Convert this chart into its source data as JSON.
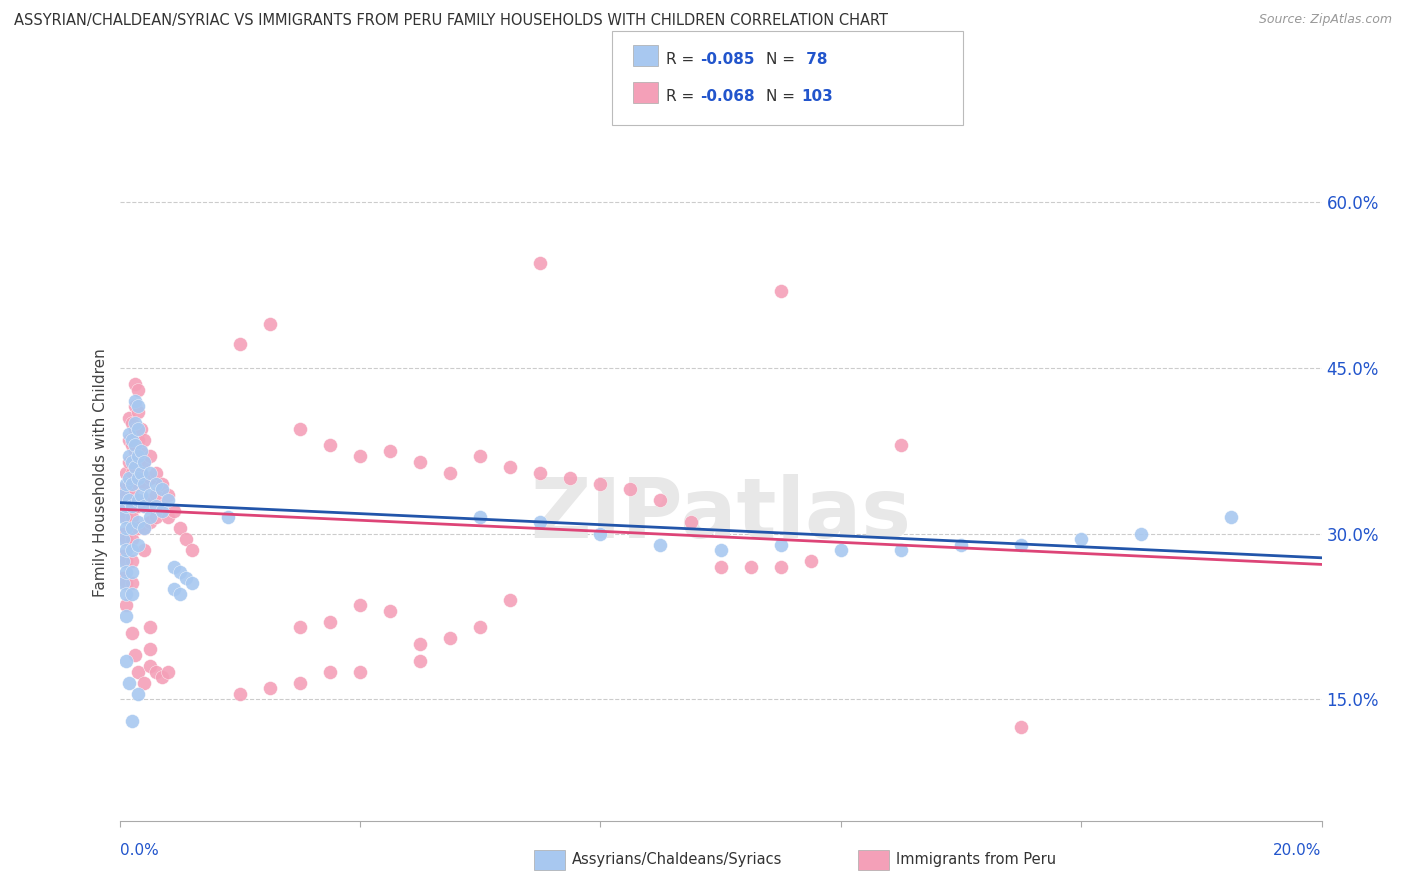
{
  "title": "ASSYRIAN/CHALDEAN/SYRIAC VS IMMIGRANTS FROM PERU FAMILY HOUSEHOLDS WITH CHILDREN CORRELATION CHART",
  "source": "Source: ZipAtlas.com",
  "ylabel": "Family Households with Children",
  "blue_color": "#A8C8F0",
  "pink_color": "#F4A0B8",
  "blue_line_color": "#2255AA",
  "pink_line_color": "#DD4477",
  "text_blue": "#2255CC",
  "background_color": "#ffffff",
  "grid_color": "#cccccc",
  "watermark": "ZIPatlas",
  "xlim": [
    0.0,
    0.2
  ],
  "ylim": [
    0.04,
    0.67
  ],
  "ytick_vals": [
    0.15,
    0.3,
    0.45,
    0.6
  ],
  "ytick_labels": [
    "15.0%",
    "30.0%",
    "45.0%",
    "60.0%"
  ],
  "xtick_vals": [
    0.0,
    0.04,
    0.08,
    0.12,
    0.16,
    0.2
  ],
  "blue_line_x": [
    0.0,
    0.2
  ],
  "blue_line_y": [
    0.328,
    0.278
  ],
  "pink_line_x": [
    0.0,
    0.2
  ],
  "pink_line_y": [
    0.322,
    0.272
  ],
  "blue_scatter": [
    [
      0.0005,
      0.335
    ],
    [
      0.0005,
      0.315
    ],
    [
      0.0005,
      0.295
    ],
    [
      0.0005,
      0.275
    ],
    [
      0.0005,
      0.255
    ],
    [
      0.001,
      0.345
    ],
    [
      0.001,
      0.325
    ],
    [
      0.001,
      0.305
    ],
    [
      0.001,
      0.285
    ],
    [
      0.001,
      0.265
    ],
    [
      0.001,
      0.245
    ],
    [
      0.001,
      0.225
    ],
    [
      0.0015,
      0.39
    ],
    [
      0.0015,
      0.37
    ],
    [
      0.0015,
      0.35
    ],
    [
      0.0015,
      0.33
    ],
    [
      0.002,
      0.385
    ],
    [
      0.002,
      0.365
    ],
    [
      0.002,
      0.345
    ],
    [
      0.002,
      0.325
    ],
    [
      0.002,
      0.305
    ],
    [
      0.002,
      0.285
    ],
    [
      0.002,
      0.265
    ],
    [
      0.002,
      0.245
    ],
    [
      0.0025,
      0.42
    ],
    [
      0.0025,
      0.4
    ],
    [
      0.0025,
      0.38
    ],
    [
      0.0025,
      0.36
    ],
    [
      0.003,
      0.415
    ],
    [
      0.003,
      0.395
    ],
    [
      0.003,
      0.37
    ],
    [
      0.003,
      0.35
    ],
    [
      0.003,
      0.33
    ],
    [
      0.003,
      0.31
    ],
    [
      0.003,
      0.29
    ],
    [
      0.0035,
      0.375
    ],
    [
      0.0035,
      0.355
    ],
    [
      0.0035,
      0.335
    ],
    [
      0.004,
      0.365
    ],
    [
      0.004,
      0.345
    ],
    [
      0.004,
      0.325
    ],
    [
      0.004,
      0.305
    ],
    [
      0.005,
      0.355
    ],
    [
      0.005,
      0.335
    ],
    [
      0.005,
      0.315
    ],
    [
      0.006,
      0.345
    ],
    [
      0.006,
      0.325
    ],
    [
      0.007,
      0.34
    ],
    [
      0.007,
      0.32
    ],
    [
      0.008,
      0.33
    ],
    [
      0.009,
      0.27
    ],
    [
      0.009,
      0.25
    ],
    [
      0.01,
      0.265
    ],
    [
      0.01,
      0.245
    ],
    [
      0.011,
      0.26
    ],
    [
      0.012,
      0.255
    ],
    [
      0.001,
      0.185
    ],
    [
      0.0015,
      0.165
    ],
    [
      0.002,
      0.13
    ],
    [
      0.003,
      0.155
    ],
    [
      0.018,
      0.315
    ],
    [
      0.06,
      0.315
    ],
    [
      0.07,
      0.31
    ],
    [
      0.08,
      0.3
    ],
    [
      0.09,
      0.29
    ],
    [
      0.1,
      0.285
    ],
    [
      0.11,
      0.29
    ],
    [
      0.12,
      0.285
    ],
    [
      0.13,
      0.285
    ],
    [
      0.14,
      0.29
    ],
    [
      0.15,
      0.29
    ],
    [
      0.16,
      0.295
    ],
    [
      0.17,
      0.3
    ],
    [
      0.185,
      0.315
    ]
  ],
  "pink_scatter": [
    [
      0.0005,
      0.34
    ],
    [
      0.0005,
      0.32
    ],
    [
      0.0005,
      0.3
    ],
    [
      0.0005,
      0.28
    ],
    [
      0.0005,
      0.26
    ],
    [
      0.001,
      0.355
    ],
    [
      0.001,
      0.335
    ],
    [
      0.001,
      0.315
    ],
    [
      0.001,
      0.295
    ],
    [
      0.001,
      0.275
    ],
    [
      0.001,
      0.255
    ],
    [
      0.001,
      0.235
    ],
    [
      0.0015,
      0.405
    ],
    [
      0.0015,
      0.385
    ],
    [
      0.0015,
      0.365
    ],
    [
      0.0015,
      0.345
    ],
    [
      0.002,
      0.4
    ],
    [
      0.002,
      0.38
    ],
    [
      0.002,
      0.355
    ],
    [
      0.002,
      0.335
    ],
    [
      0.002,
      0.315
    ],
    [
      0.002,
      0.295
    ],
    [
      0.002,
      0.275
    ],
    [
      0.002,
      0.255
    ],
    [
      0.0025,
      0.435
    ],
    [
      0.0025,
      0.415
    ],
    [
      0.0025,
      0.395
    ],
    [
      0.0025,
      0.375
    ],
    [
      0.003,
      0.43
    ],
    [
      0.003,
      0.41
    ],
    [
      0.003,
      0.385
    ],
    [
      0.003,
      0.365
    ],
    [
      0.003,
      0.345
    ],
    [
      0.003,
      0.325
    ],
    [
      0.003,
      0.305
    ],
    [
      0.0035,
      0.395
    ],
    [
      0.0035,
      0.375
    ],
    [
      0.0035,
      0.355
    ],
    [
      0.004,
      0.385
    ],
    [
      0.004,
      0.365
    ],
    [
      0.004,
      0.345
    ],
    [
      0.004,
      0.325
    ],
    [
      0.004,
      0.305
    ],
    [
      0.004,
      0.285
    ],
    [
      0.005,
      0.37
    ],
    [
      0.005,
      0.35
    ],
    [
      0.005,
      0.33
    ],
    [
      0.005,
      0.31
    ],
    [
      0.005,
      0.215
    ],
    [
      0.005,
      0.195
    ],
    [
      0.006,
      0.355
    ],
    [
      0.006,
      0.335
    ],
    [
      0.006,
      0.315
    ],
    [
      0.007,
      0.345
    ],
    [
      0.007,
      0.325
    ],
    [
      0.008,
      0.335
    ],
    [
      0.008,
      0.315
    ],
    [
      0.009,
      0.32
    ],
    [
      0.01,
      0.305
    ],
    [
      0.011,
      0.295
    ],
    [
      0.012,
      0.285
    ],
    [
      0.002,
      0.21
    ],
    [
      0.0025,
      0.19
    ],
    [
      0.003,
      0.175
    ],
    [
      0.004,
      0.165
    ],
    [
      0.005,
      0.18
    ],
    [
      0.006,
      0.175
    ],
    [
      0.007,
      0.17
    ],
    [
      0.008,
      0.175
    ],
    [
      0.02,
      0.472
    ],
    [
      0.025,
      0.49
    ],
    [
      0.03,
      0.395
    ],
    [
      0.035,
      0.38
    ],
    [
      0.04,
      0.37
    ],
    [
      0.045,
      0.375
    ],
    [
      0.05,
      0.365
    ],
    [
      0.055,
      0.355
    ],
    [
      0.06,
      0.37
    ],
    [
      0.065,
      0.36
    ],
    [
      0.07,
      0.355
    ],
    [
      0.075,
      0.35
    ],
    [
      0.08,
      0.345
    ],
    [
      0.085,
      0.34
    ],
    [
      0.09,
      0.33
    ],
    [
      0.095,
      0.31
    ],
    [
      0.1,
      0.27
    ],
    [
      0.105,
      0.27
    ],
    [
      0.11,
      0.27
    ],
    [
      0.115,
      0.275
    ],
    [
      0.03,
      0.215
    ],
    [
      0.035,
      0.22
    ],
    [
      0.04,
      0.235
    ],
    [
      0.045,
      0.23
    ],
    [
      0.05,
      0.2
    ],
    [
      0.055,
      0.205
    ],
    [
      0.06,
      0.215
    ],
    [
      0.065,
      0.24
    ],
    [
      0.07,
      0.545
    ],
    [
      0.11,
      0.52
    ],
    [
      0.13,
      0.38
    ],
    [
      0.15,
      0.125
    ],
    [
      0.02,
      0.155
    ],
    [
      0.025,
      0.16
    ],
    [
      0.03,
      0.165
    ],
    [
      0.035,
      0.175
    ],
    [
      0.04,
      0.175
    ],
    [
      0.05,
      0.185
    ]
  ]
}
